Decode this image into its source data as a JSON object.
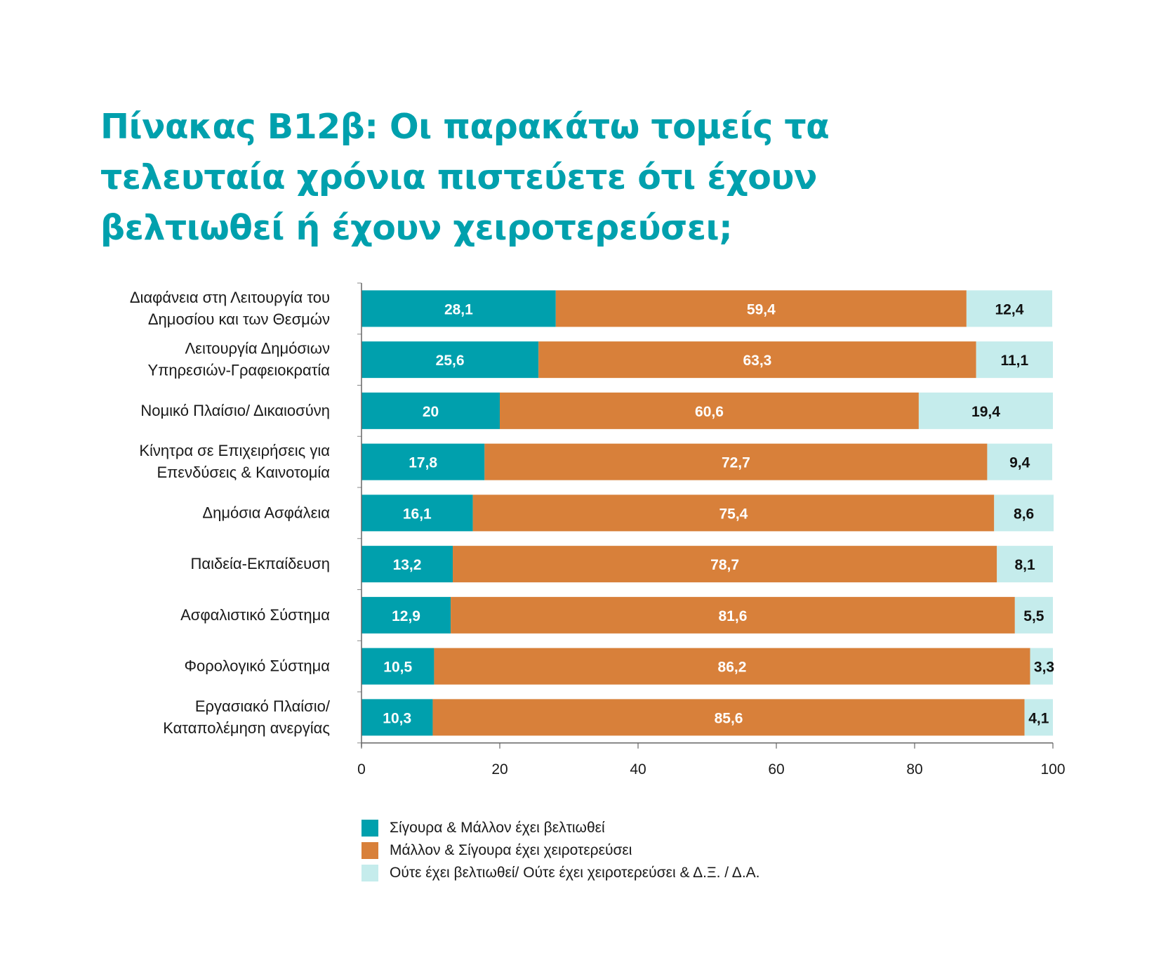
{
  "title": {
    "lines": [
      "Πίνακας Β12β: Οι παρακάτω τομείς τα",
      "τελευταία χρόνια πιστεύετε ότι έχουν",
      "βελτιωθεί ή έχουν χειροτερεύσει;"
    ]
  },
  "colors": {
    "title": "#00a0ad",
    "improved": "#00a0ad",
    "worsened": "#d8803a",
    "neither": "#c5ecec"
  },
  "chart_data": {
    "type": "bar",
    "orientation": "horizontal",
    "stacked": true,
    "categories": [
      [
        "Διαφάνεια στη Λειτουργία του",
        "Δημοσίου και των Θεσμών"
      ],
      [
        "Λειτουργία Δημόσιων",
        "Υπηρεσιών-Γραφειοκρατία"
      ],
      [
        "Νομικό Πλαίσιο/ Δικαιοσύνη"
      ],
      [
        "Κίνητρα σε Επιχειρήσεις για",
        "Επενδύσεις & Καινοτομία"
      ],
      [
        "Δημόσια Ασφάλεια"
      ],
      [
        "Παιδεία-Εκπαίδευση"
      ],
      [
        "Ασφαλιστικό Σύστημα"
      ],
      [
        "Φορολογικό Σύστημα"
      ],
      [
        "Εργασιακό Πλαίσιο/",
        "Καταπολέμηση ανεργίας"
      ]
    ],
    "series": [
      {
        "name": "Σίγουρα & Μάλλον έχει βελτιωθεί",
        "color_key": "improved",
        "values": [
          28.1,
          25.6,
          20,
          17.8,
          16.1,
          13.2,
          12.9,
          10.5,
          10.3
        ],
        "labels": [
          "28,1",
          "25,6",
          "20",
          "17,8",
          "16,1",
          "13,2",
          "12,9",
          "10,5",
          "10,3"
        ]
      },
      {
        "name": "Μάλλον & Σίγουρα έχει χειροτερεύσει",
        "color_key": "worsened",
        "values": [
          59.4,
          63.3,
          60.6,
          72.7,
          75.4,
          78.7,
          81.6,
          86.2,
          85.6
        ],
        "labels": [
          "59,4",
          "63,3",
          "60,6",
          "72,7",
          "75,4",
          "78,7",
          "81,6",
          "86,2",
          "85,6"
        ]
      },
      {
        "name": "Ούτε έχει βελτιωθεί/ Ούτε έχει χειροτερεύσει & Δ.Ξ. / Δ.Α.",
        "color_key": "neither",
        "values": [
          12.4,
          11.1,
          19.4,
          9.4,
          8.6,
          8.1,
          5.5,
          3.3,
          4.1
        ],
        "labels": [
          "12,4",
          "11,1",
          "19,4",
          "9,4",
          "8,6",
          "8,1",
          "5,5",
          "3,3",
          "4,1"
        ]
      }
    ],
    "xlim": [
      0,
      100
    ],
    "xticks": [
      "0",
      "20",
      "40",
      "60",
      "80",
      "100"
    ],
    "grid": false,
    "legend_position": "bottom"
  }
}
